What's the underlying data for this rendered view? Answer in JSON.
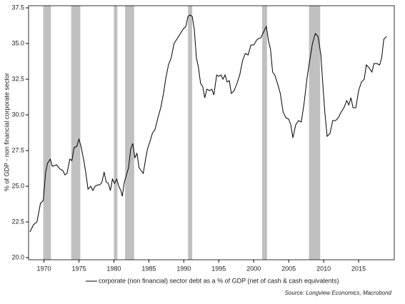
{
  "chart_data": {
    "type": "line",
    "y_label": "% of GDP - non financial corporate sector",
    "source": "Source: Longview Economics, Macrobond",
    "x": [
      1968.0,
      1968.5,
      1969.0,
      1969.5,
      1969.9,
      1970.25,
      1970.5,
      1970.9,
      1971.2,
      1971.8,
      1972.3,
      1972.7,
      1973.0,
      1973.3,
      1973.7,
      1974.0,
      1974.3,
      1974.7,
      1975.0,
      1975.3,
      1975.7,
      1976.0,
      1976.3,
      1976.7,
      1977.0,
      1977.3,
      1977.7,
      1978.0,
      1978.3,
      1978.6,
      1978.9,
      1979.2,
      1979.5,
      1979.8,
      1980.1,
      1980.4,
      1980.7,
      1981.0,
      1981.2,
      1981.5,
      1981.8,
      1982.1,
      1982.4,
      1982.7,
      1983.0,
      1983.3,
      1983.6,
      1983.9,
      1984.2,
      1984.5,
      1984.8,
      1985.2,
      1985.5,
      1985.9,
      1986.3,
      1986.7,
      1987.1,
      1987.4,
      1987.8,
      1988.2,
      1988.6,
      1989.0,
      1989.5,
      1989.9,
      1990.3,
      1990.6,
      1990.9,
      1991.2,
      1991.5,
      1991.8,
      1992.1,
      1992.4,
      1992.7,
      1993.0,
      1993.3,
      1993.7,
      1994.0,
      1994.3,
      1994.7,
      1995.0,
      1995.3,
      1995.6,
      1995.9,
      1996.2,
      1996.5,
      1996.8,
      1997.2,
      1997.6,
      1998.0,
      1998.4,
      1998.8,
      1999.2,
      1999.6,
      2000.0,
      2000.5,
      2001.0,
      2001.4,
      2001.8,
      2002.1,
      2002.4,
      2002.7,
      2003.0,
      2003.4,
      2003.8,
      2004.2,
      2004.6,
      2005.0,
      2005.3,
      2005.6,
      2006.0,
      2006.4,
      2006.8,
      2007.2,
      2007.6,
      2008.0,
      2008.4,
      2008.8,
      2009.2,
      2009.6,
      2009.9,
      2010.2,
      2010.5,
      2010.9,
      2011.3,
      2011.7,
      2012.1,
      2012.5,
      2012.9,
      2013.3,
      2013.6,
      2013.9,
      2014.2,
      2014.6,
      2015.0,
      2015.4,
      2015.8,
      2016.1,
      2016.5,
      2016.9,
      2017.2,
      2017.6,
      2018.0,
      2018.3,
      2018.6,
      2019.0
    ],
    "series": [
      {
        "name": "corporate (non financial) sector debt as a % of GDP (net of cash & cash equivalents)",
        "color": "#000000",
        "values": [
          21.8,
          22.3,
          22.5,
          23.8,
          24.0,
          26.0,
          26.6,
          26.9,
          26.4,
          26.5,
          26.2,
          26.1,
          25.8,
          25.9,
          26.9,
          26.8,
          27.7,
          27.8,
          28.3,
          27.8,
          26.8,
          25.9,
          24.8,
          25.0,
          24.7,
          25.0,
          25.1,
          25.1,
          25.3,
          26.0,
          25.3,
          25.2,
          24.7,
          25.5,
          25.2,
          25.5,
          25.0,
          24.7,
          24.3,
          25.3,
          25.8,
          26.3,
          27.6,
          28.0,
          27.0,
          27.3,
          26.3,
          26.1,
          25.9,
          26.8,
          27.6,
          28.2,
          28.7,
          29.0,
          29.8,
          30.5,
          31.5,
          32.5,
          33.5,
          34.0,
          35.0,
          35.3,
          35.7,
          36.0,
          36.2,
          36.9,
          37.0,
          36.9,
          36.0,
          34.0,
          33.3,
          32.2,
          32.0,
          31.2,
          31.8,
          31.7,
          31.8,
          31.4,
          32.8,
          32.7,
          32.8,
          32.5,
          32.8,
          32.3,
          32.4,
          31.5,
          31.7,
          32.2,
          32.8,
          33.8,
          34.3,
          34.2,
          34.9,
          34.9,
          35.3,
          35.4,
          35.8,
          36.2,
          35.2,
          34.6,
          33.0,
          32.8,
          32.2,
          31.5,
          30.2,
          29.8,
          29.7,
          29.3,
          28.4,
          29.3,
          29.6,
          29.5,
          30.8,
          32.5,
          33.8,
          35.0,
          35.7,
          35.5,
          34.2,
          32.0,
          30.0,
          28.5,
          28.7,
          29.6,
          29.6,
          29.8,
          30.2,
          30.5,
          31.0,
          30.7,
          31.2,
          30.5,
          30.5,
          31.7,
          32.3,
          32.5,
          33.5,
          33.3,
          33.0,
          33.6,
          33.6,
          33.5,
          34.0,
          35.3,
          35.5
        ]
      }
    ],
    "shaded_periods": [
      [
        1969.9,
        1971.0
      ],
      [
        1973.9,
        1975.2
      ],
      [
        1980.0,
        1980.5
      ],
      [
        1981.6,
        1982.9
      ],
      [
        1990.6,
        1991.2
      ],
      [
        2001.2,
        2001.9
      ],
      [
        2007.9,
        2009.5
      ]
    ],
    "shade_color": "#c0c0c0",
    "xlim": [
      1967.8,
      2020.1
    ],
    "xticks": [
      1970,
      1975,
      1980,
      1985,
      1990,
      1995,
      2000,
      2005,
      2010,
      2015
    ],
    "ylim": [
      19.85,
      37.65
    ],
    "yticks": [
      {
        "value": 20.0,
        "label": "20.0"
      },
      {
        "value": 22.5,
        "label": "22.5"
      },
      {
        "value": 25.0,
        "label": "25.0"
      },
      {
        "value": 27.5,
        "label": "27.5"
      },
      {
        "value": 30.0,
        "label": "30.0"
      },
      {
        "value": 32.5,
        "label": "32.5"
      },
      {
        "value": 35.0,
        "label": "35.0"
      },
      {
        "value": 37.5,
        "label": "37.5"
      }
    ]
  }
}
